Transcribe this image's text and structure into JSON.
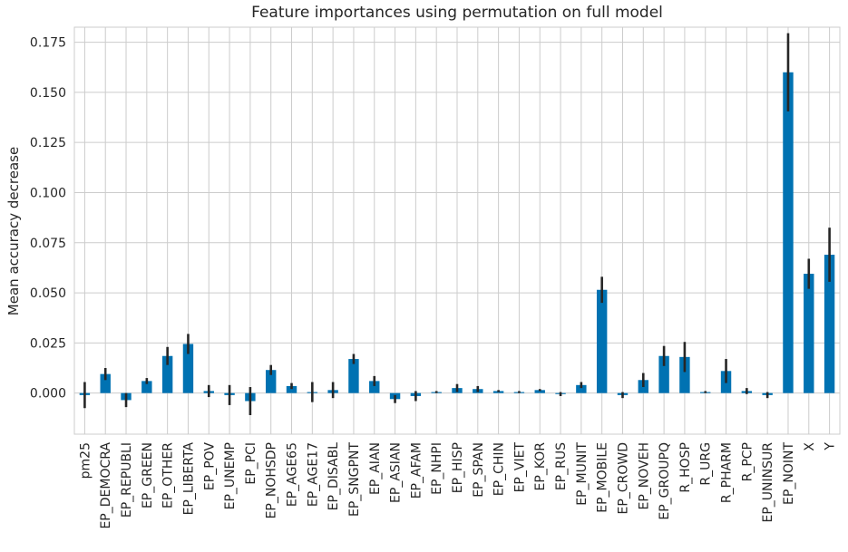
{
  "chart_data": {
    "type": "bar",
    "title": "Feature importances using permutation on full model",
    "xlabel": "",
    "ylabel": "Mean accuracy decrease",
    "ylim": [
      -0.0205,
      0.1825
    ],
    "yticks": [
      0.0,
      0.025,
      0.05,
      0.075,
      0.1,
      0.125,
      0.15,
      0.175
    ],
    "ytick_labels": [
      "0.000",
      "0.025",
      "0.050",
      "0.075",
      "0.100",
      "0.125",
      "0.150",
      "0.175"
    ],
    "grid": true,
    "bar_color": "#0072b2",
    "error_color": "#262626",
    "categories": [
      "pm25",
      "EP_DEMOCRA",
      "EP_REPUBLI",
      "EP_GREEN",
      "EP_OTHER",
      "EP_LIBERTA",
      "EP_POV",
      "EP_UNEMP",
      "EP_PCI",
      "EP_NOHSDP",
      "EP_AGE65",
      "EP_AGE17",
      "EP_DISABL",
      "EP_SNGPNT",
      "EP_AIAN",
      "EP_ASIAN",
      "EP_AFAM",
      "EP_NHPI",
      "EP_HISP",
      "EP_SPAN",
      "EP_CHIN",
      "EP_VIET",
      "EP_KOR",
      "EP_RUS",
      "EP_MUNIT",
      "EP_MOBILE",
      "EP_CROWD",
      "EP_NOVEH",
      "EP_GROUPQ",
      "R_HOSP",
      "R_URG",
      "R_PHARM",
      "R_PCP",
      "EP_UNINSUR",
      "EP_NOINT",
      "X",
      "Y"
    ],
    "values": [
      -0.001,
      0.0095,
      -0.0035,
      0.006,
      0.0185,
      0.0245,
      0.001,
      -0.001,
      -0.004,
      0.0115,
      0.0035,
      0.0005,
      0.0015,
      0.017,
      0.006,
      -0.003,
      -0.0015,
      0.0005,
      0.0025,
      0.002,
      0.001,
      0.0005,
      0.0015,
      -0.0005,
      0.004,
      0.0515,
      -0.001,
      0.0065,
      0.0185,
      0.018,
      0.0005,
      0.011,
      0.001,
      -0.001,
      0.16,
      0.0595,
      0.069
    ],
    "errors": [
      0.0065,
      0.003,
      0.0035,
      0.0015,
      0.0045,
      0.005,
      0.003,
      0.005,
      0.007,
      0.0025,
      0.0015,
      0.005,
      0.004,
      0.0025,
      0.0025,
      0.002,
      0.0025,
      0.0005,
      0.002,
      0.0015,
      0.0005,
      0.0005,
      0.0005,
      0.001,
      0.0015,
      0.0065,
      0.0015,
      0.0035,
      0.005,
      0.0075,
      0.0005,
      0.006,
      0.0015,
      0.0015,
      0.0195,
      0.0075,
      0.0135
    ]
  }
}
